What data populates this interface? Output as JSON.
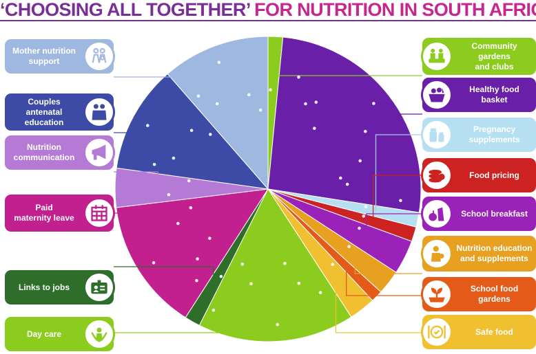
{
  "title": {
    "part1": "‘CHOOSING ALL TOGETHER’",
    "part2": "FOR NUTRITION IN SOUTH AFRICA"
  },
  "colors": {
    "title_purple": "#7a2e98",
    "title_pink": "#c8268f"
  },
  "chart_data": {
    "type": "pie",
    "title": "‘CHOOSING ALL TOGETHER’ FOR NUTRITION IN SOUTH AFRICA",
    "start_angle_deg": 90,
    "direction": "clockwise",
    "slices": [
      {
        "label": "Community gardens and clubs",
        "value": 1.5,
        "color": "#8ccc1e",
        "icon": "community-icon"
      },
      {
        "label": "Healthy food basket",
        "value": 25,
        "color": "#6a1fa8",
        "icon": "basket-icon"
      },
      {
        "label": "Pregnancy supplements",
        "value": 1.5,
        "color": "#b6e0f2",
        "icon": "supplements-icon"
      },
      {
        "label": "Food pricing",
        "value": 1.5,
        "color": "#cc2222",
        "icon": "coins-icon"
      },
      {
        "label": "School breakfast",
        "value": 3.5,
        "color": "#9b22b8",
        "icon": "breakfast-icon"
      },
      {
        "label": "Nutrition education and supplements",
        "value": 2.5,
        "color": "#e8a020",
        "icon": "education-icon"
      },
      {
        "label": "School food gardens",
        "value": 1.2,
        "color": "#e45a18",
        "icon": "plant-icon"
      },
      {
        "label": "Safe food",
        "value": 2.7,
        "color": "#f0c030",
        "icon": "plate-icon"
      },
      {
        "label": "Day care",
        "value": 16,
        "color": "#8ccc1e",
        "icon": "daycare-icon"
      },
      {
        "label": "Links to jobs",
        "value": 1.6,
        "color": "#2e6e2a",
        "icon": "id-card-icon"
      },
      {
        "label": "Paid maternity leave",
        "value": 13.5,
        "color": "#c2208e",
        "icon": "calendar-icon"
      },
      {
        "label": "Nutrition communication",
        "value": 4,
        "color": "#b57ad6",
        "icon": "megaphone-icon"
      },
      {
        "label": "Couples antenatal education",
        "value": 11,
        "color": "#3d4aa6",
        "icon": "couple-icon"
      },
      {
        "label": "Mother nutrition support",
        "value": 11,
        "color": "#9fb8e0",
        "icon": "mother-icon"
      }
    ],
    "legend_placement": "left and right columns"
  },
  "labels": {
    "mother_nutrition": "Mother nutrition\nsupport",
    "couples_antenatal": "Couples\nantenatal\neducation",
    "nutrition_comm": "Nutrition\ncommunication",
    "paid_maternity": "Paid\nmaternity leave",
    "links_jobs": "Links to jobs",
    "day_care": "Day care",
    "community_gardens": "Community\ngardens\nand clubs",
    "healthy_basket": "Healthy food\nbasket",
    "pregnancy_supp": "Pregnancy\nsupplements",
    "food_pricing": "Food pricing",
    "school_breakfast": "School breakfast",
    "nutrition_edu": "Nutrition education\nand supplements",
    "school_gardens": "School food\ngardens",
    "safe_food": "Safe food"
  }
}
